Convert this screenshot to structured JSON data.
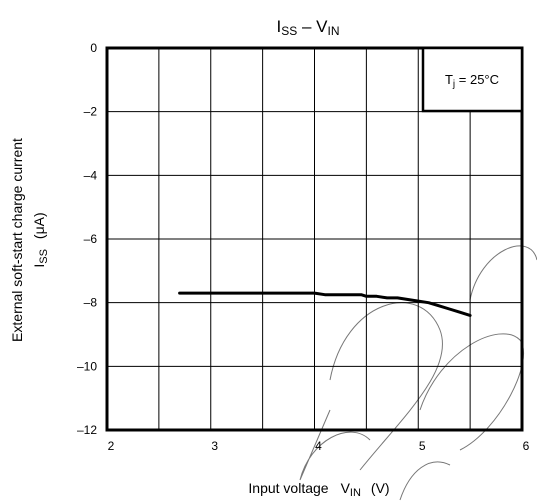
{
  "chart_data": {
    "type": "line",
    "title": {
      "main": "I",
      "main_sub": "SS",
      "sep": " – ",
      "var": "V",
      "var_sub": "IN"
    },
    "xlabel": {
      "text": "Input voltage",
      "var": "V",
      "var_sub": "IN",
      "unit": "(V)"
    },
    "ylabel": {
      "line1": "External soft-start charge current",
      "var": "I",
      "var_sub": "SS",
      "unit": "(μA)"
    },
    "xlim": [
      2,
      6
    ],
    "ylim": [
      -12,
      0
    ],
    "x_ticks": [
      "2",
      "3",
      "4",
      "5",
      "6"
    ],
    "y_ticks": [
      "0",
      "–2",
      "–4",
      "–6",
      "–8",
      "–10",
      "–12"
    ],
    "x_tick_values": [
      2,
      3,
      4,
      5,
      6
    ],
    "y_tick_values": [
      0,
      -2,
      -4,
      -6,
      -8,
      -10,
      -12
    ],
    "grid": true,
    "annotation": {
      "var": "T",
      "var_sub": "j",
      "value": " = 25°C"
    },
    "series": [
      {
        "x": [
          2.7,
          3.0,
          3.5,
          4.0,
          4.1,
          4.3,
          4.45,
          4.5,
          4.6,
          4.7,
          4.8,
          4.9,
          5.0,
          5.1,
          5.2,
          5.3,
          5.4,
          5.5
        ],
        "y": [
          -7.7,
          -7.7,
          -7.7,
          -7.7,
          -7.75,
          -7.75,
          -7.75,
          -7.8,
          -7.8,
          -7.85,
          -7.85,
          -7.9,
          -7.95,
          -8.0,
          -8.1,
          -8.2,
          -8.3,
          -8.4
        ]
      }
    ],
    "colors": {
      "line": "#000000",
      "grid": "#000000",
      "frame": "#000000"
    }
  }
}
